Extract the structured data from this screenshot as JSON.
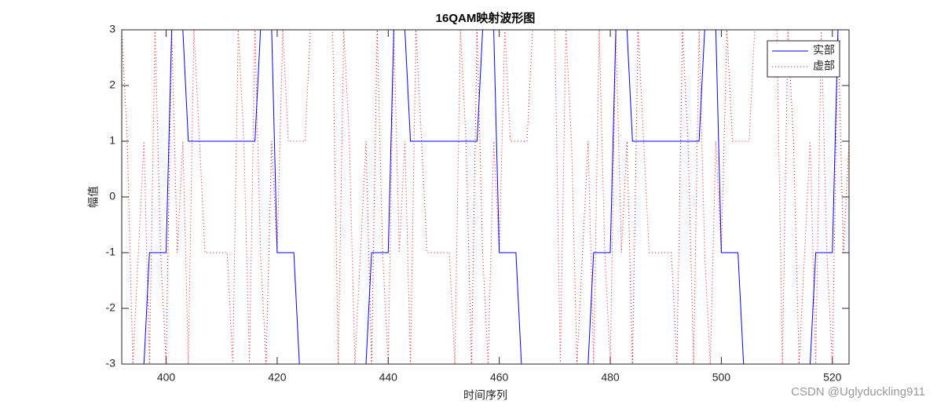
{
  "chart_data": {
    "type": "line",
    "title": "16QAM映射波形图",
    "xlabel": "时间序列",
    "ylabel": "幅值",
    "x": [
      392,
      393,
      394,
      395,
      396,
      397,
      398,
      399,
      400,
      401,
      402,
      403,
      404,
      405,
      406,
      407,
      408,
      409,
      410,
      411,
      412,
      413,
      414,
      415,
      416,
      417,
      418,
      419,
      420,
      421,
      422,
      423,
      424,
      425,
      426,
      427,
      428,
      429,
      430,
      431,
      432,
      433,
      434,
      435,
      436,
      437,
      438,
      439,
      440,
      441,
      442,
      443,
      444,
      445,
      446,
      447,
      448,
      449,
      450,
      451,
      452,
      453,
      454,
      455,
      456,
      457,
      458,
      459,
      460,
      461,
      462,
      463,
      464,
      465,
      466,
      467,
      468,
      469,
      470,
      471,
      472,
      473,
      474,
      475,
      476,
      477,
      478,
      479,
      480,
      481,
      482,
      483,
      484,
      485,
      486,
      487,
      488,
      489,
      490,
      491,
      492,
      493,
      494,
      495,
      496,
      497,
      498,
      499,
      500,
      501,
      502,
      503,
      504,
      505,
      506,
      507,
      508,
      509,
      510,
      511,
      512,
      513,
      514,
      515,
      516,
      517,
      518,
      519,
      520,
      521,
      522,
      523
    ],
    "series": [
      {
        "name": "实部",
        "color": "#0000ff",
        "style": "solid",
        "values": [
          -3,
          -3,
          -3,
          -3,
          -3,
          -1,
          -1,
          -1,
          -1,
          3,
          3,
          3,
          1,
          1,
          1,
          1,
          1,
          1,
          1,
          1,
          1,
          1,
          1,
          1,
          1,
          3,
          3,
          3,
          -1,
          -1,
          -1,
          -1,
          -3,
          -3,
          -3,
          -3,
          -3,
          -3,
          -3,
          -3,
          -3,
          -3,
          -3,
          -3,
          -3,
          -1,
          -1,
          -1,
          -1,
          3,
          3,
          3,
          1,
          1,
          1,
          1,
          1,
          1,
          1,
          1,
          1,
          1,
          1,
          1,
          1,
          3,
          3,
          3,
          -1,
          -1,
          -1,
          -1,
          -3,
          -3,
          -3,
          -3,
          -3,
          -3,
          -3,
          -3,
          -3,
          -3,
          -3,
          -3,
          -3,
          -1,
          -1,
          -1,
          -1,
          3,
          3,
          3,
          1,
          1,
          1,
          1,
          1,
          1,
          1,
          1,
          1,
          1,
          1,
          1,
          1,
          3,
          3,
          3,
          -1,
          -1,
          -1,
          -1,
          -3,
          -3,
          -3,
          -3,
          -3,
          -3,
          -3,
          -3,
          -3,
          -3,
          -3,
          -3,
          -3,
          -1,
          -1,
          -1,
          -1,
          3,
          3,
          3
        ]
      },
      {
        "name": "虚部",
        "color": "#ff0000",
        "style": "dotted",
        "values": [
          3,
          1,
          -3,
          -1,
          1,
          -3,
          3,
          -1,
          -3,
          3,
          -1,
          1,
          -3,
          3,
          1,
          -1,
          -1,
          -1,
          -1,
          -1,
          -3,
          3,
          1,
          -3,
          3,
          -1,
          -3,
          1,
          -1,
          3,
          1,
          1,
          1,
          1,
          3,
          3,
          3,
          3,
          3,
          -3,
          3,
          1,
          -3,
          -1,
          1,
          -3,
          3,
          -1,
          -3,
          3,
          -1,
          1,
          -3,
          3,
          1,
          -1,
          -1,
          -1,
          -1,
          -1,
          -3,
          3,
          1,
          -3,
          3,
          -1,
          -3,
          1,
          -1,
          3,
          1,
          1,
          1,
          1,
          3,
          3,
          3,
          3,
          3,
          -3,
          3,
          1,
          -3,
          -1,
          1,
          -3,
          3,
          -1,
          -3,
          3,
          -1,
          1,
          -3,
          3,
          1,
          -1,
          -1,
          -1,
          -1,
          -1,
          -3,
          3,
          1,
          -3,
          3,
          -1,
          -3,
          1,
          -1,
          3,
          1,
          1,
          1,
          1,
          3,
          3,
          3,
          3,
          3,
          -3,
          3,
          1,
          -3,
          -1,
          1,
          -3,
          3,
          -1,
          -3,
          3,
          -1,
          1
        ]
      }
    ],
    "xlim": [
      392,
      523
    ],
    "ylim": [
      -3,
      3
    ],
    "xticks": [
      400,
      420,
      440,
      460,
      480,
      500,
      520
    ],
    "yticks": [
      -3,
      -2,
      -1,
      0,
      1,
      2,
      3
    ],
    "legend": "upper right",
    "watermark": "CSDN @Uglyduckling911"
  }
}
